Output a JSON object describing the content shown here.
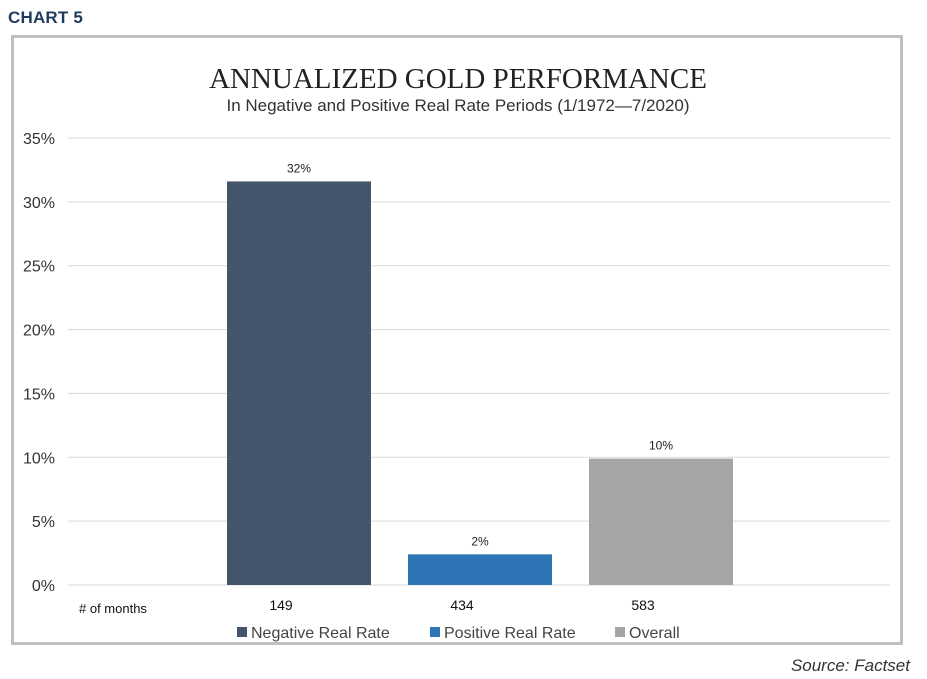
{
  "header": {
    "label": "CHART 5"
  },
  "source": "Source: Factset",
  "colors": {
    "negative": "#44546a",
    "positive": "#2e75b6",
    "overall": "#a5a5a5",
    "grid": "#d9d9d9",
    "header": "#1f3a5f"
  },
  "chart_data": {
    "type": "bar",
    "title": "ANNUALIZED GOLD PERFORMANCE",
    "subtitle": "In Negative and Positive Real Rate Periods (1/1972—7/2020)",
    "categories": [
      "Negative Real Rate",
      "Positive Real Rate",
      "Overall"
    ],
    "values": [
      31.6,
      2.4,
      9.9
    ],
    "data_labels": [
      "32%",
      "2%",
      "10%"
    ],
    "months_label": "# of months",
    "months": [
      "149",
      "434",
      "583"
    ],
    "y_ticks": [
      "0%",
      "5%",
      "10%",
      "15%",
      "20%",
      "25%",
      "30%",
      "35%"
    ],
    "y_tick_values": [
      0,
      5,
      10,
      15,
      20,
      25,
      30,
      35
    ],
    "ylim": [
      0,
      35
    ],
    "grid": true,
    "legend_position": "bottom",
    "legend": [
      "Negative Real Rate",
      "Positive Real Rate",
      "Overall"
    ],
    "bar_colors": [
      "#44546a",
      "#2e75b6",
      "#a5a5a5"
    ]
  }
}
